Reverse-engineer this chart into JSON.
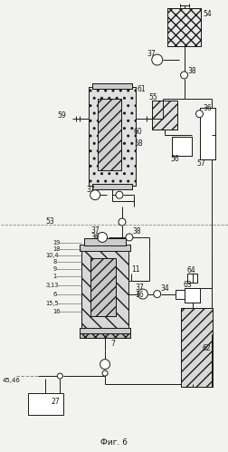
{
  "bg_color": "#f2f2ee",
  "lc": "#1a1a1a",
  "title": "Фиг. 6",
  "fig_w": 2.53,
  "fig_h": 4.99,
  "dpi": 100
}
